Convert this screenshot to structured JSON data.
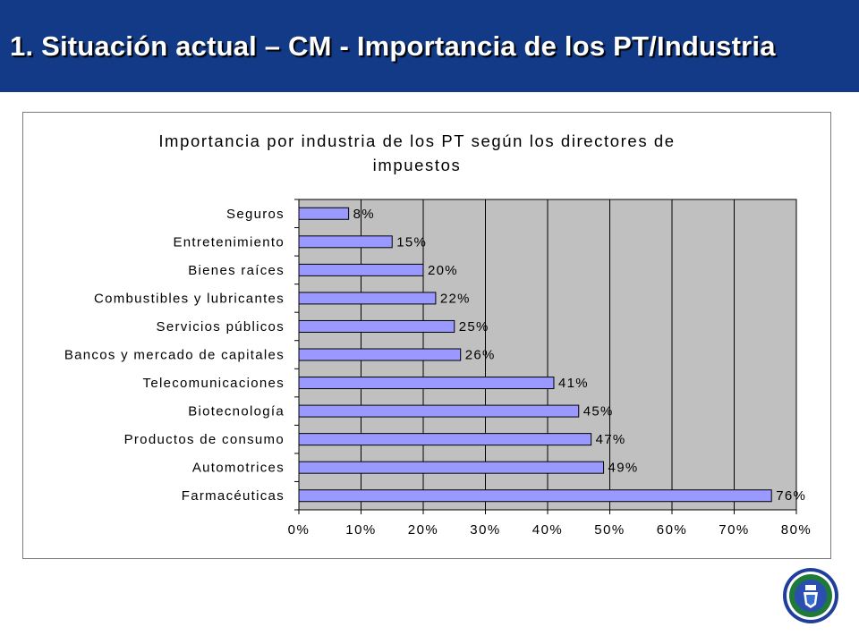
{
  "slide": {
    "title": "1. Situación actual – CM - Importancia de los PT/Industria"
  },
  "colors": {
    "header_bg": "#123a86",
    "bar_fill": "#9999ff",
    "plot_bg": "#c0c0c0"
  },
  "chart_data": {
    "type": "bar",
    "orientation": "horizontal",
    "title": "Importancia por industria de los PT según los directores de impuestos",
    "categories": [
      "Seguros",
      "Entretenimiento",
      "Bienes raíces",
      "Combustibles y lubricantes",
      "Servicios públicos",
      "Bancos y mercado de capitales",
      "Telecomunicaciones",
      "Biotecnología",
      "Productos de consumo",
      "Automotrices",
      "Farmacéuticas"
    ],
    "values": [
      8,
      15,
      20,
      22,
      25,
      26,
      41,
      45,
      47,
      49,
      76
    ],
    "data_labels": [
      "8%",
      "15%",
      "20%",
      "22%",
      "25%",
      "26%",
      "41%",
      "45%",
      "47%",
      "49%",
      "76%"
    ],
    "xlim": [
      0,
      80
    ],
    "x_ticks": [
      "0%",
      "10%",
      "20%",
      "30%",
      "40%",
      "50%",
      "60%",
      "70%",
      "80%"
    ],
    "grid": "vertical",
    "legend": "none"
  }
}
